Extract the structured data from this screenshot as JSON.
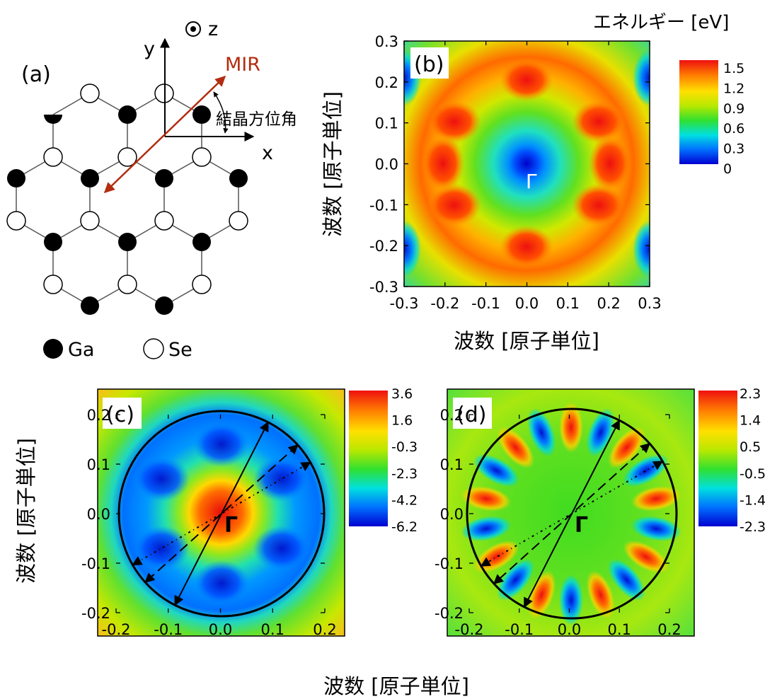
{
  "panel_a": {
    "label": "(a)",
    "axis_x": "x",
    "axis_y": "y",
    "axis_z": "z",
    "mir": "MIR",
    "angle_label": "結晶方位角",
    "legend": {
      "ga": "Ga",
      "se": "Se"
    },
    "colors": {
      "mir": "#b22d10",
      "atom_fill_ga": "#000000",
      "atom_fill_se": "#ffffff"
    }
  },
  "panel_b": {
    "label": "(b)",
    "gamma": "Γ",
    "xlabel": "波数 [原子単位]",
    "ylabel": "波数 [原子単位]",
    "colorbar_title": "エネルギー [eV]",
    "colorbar_ticks": [
      "1.5",
      "1.2",
      "0.9",
      "0.6",
      "0.3",
      "0"
    ],
    "x_ticks": [
      "-0.3",
      "-0.2",
      "-0.1",
      "0.0",
      "0.1",
      "0.2",
      "0.3"
    ],
    "y_ticks": [
      "0.3",
      "0.2",
      "0.1",
      "0.0",
      "-0.1",
      "-0.2",
      "-0.3"
    ]
  },
  "panel_c": {
    "label": "(c)",
    "gamma": "Γ",
    "ylabel": "波数 [原子単位]",
    "colorbar_ticks": [
      "3.6",
      "1.6",
      "-0.3",
      "-2.3",
      "-4.2",
      "-6.2"
    ],
    "x_ticks": [
      "-0.2",
      "-0.1",
      "0.0",
      "0.1",
      "0.2"
    ],
    "y_ticks": [
      "0.2",
      "0.1",
      "0.0",
      "-0.1",
      "-0.2"
    ]
  },
  "panel_d": {
    "label": "(d)",
    "gamma": "Γ",
    "colorbar_ticks": [
      "2.3",
      "1.4",
      "0.5",
      "-0.5",
      "-1.4",
      "-2.3"
    ],
    "x_ticks": [
      "-0.2",
      "-0.1",
      "0.0",
      "0.1",
      "0.2"
    ],
    "y_ticks": [
      "0.2",
      "0.1",
      "0.0",
      "-0.1",
      "-0.2"
    ]
  },
  "shared_xlabel_cd": "波数 [原子単位]",
  "colormap": [
    "#0000d0",
    "#0070ff",
    "#00e0e0",
    "#30e030",
    "#b8e800",
    "#ffe000",
    "#ff8000",
    "#ee1010"
  ]
}
